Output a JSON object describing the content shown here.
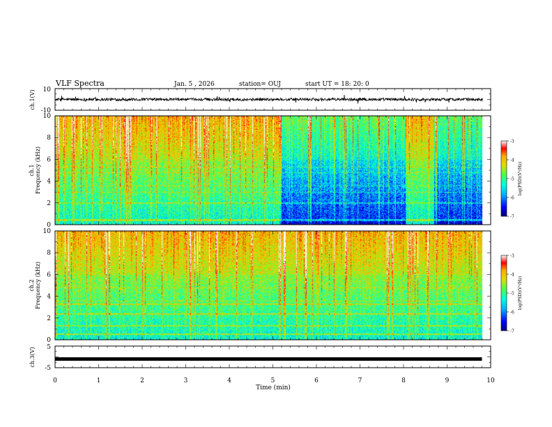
{
  "header": {
    "title": "VLF Spectra",
    "date": "Jan. 5 , 2026",
    "station": "station= OUJ",
    "start": "start UT =  18: 20: 0"
  },
  "chart_data": [
    {
      "type": "line",
      "id": "ch1-waveform",
      "ylabel": "ch.1(V)",
      "ylim": [
        -10,
        10
      ],
      "yticks": [
        "10",
        "-10"
      ],
      "xlim": [
        0,
        10
      ],
      "color": "#000000"
    },
    {
      "type": "heatmap",
      "id": "ch1-spectrogram",
      "ylabel": "ch.1\nFrequency (kHz)",
      "ylabel_line1": "ch.1",
      "ylabel_line2": "Frequency (kHz)",
      "ylim": [
        0,
        10
      ],
      "yticks": [
        "0",
        "2",
        "4",
        "6",
        "8",
        "10"
      ],
      "xlim": [
        0,
        10
      ],
      "data_end_min": 9.8,
      "low_activity_segments": [
        [
          5.15,
          8.05
        ],
        [
          8.7,
          9.8
        ]
      ],
      "colorbar": {
        "label": "log(PSD)(V²/Hz)",
        "range": [
          -7,
          -3
        ],
        "ticks": [
          "-3",
          "-4",
          "-5",
          "-6",
          "-7"
        ]
      }
    },
    {
      "type": "heatmap",
      "id": "ch2-spectrogram",
      "ylabel": "ch.2\nFrequency (kHz)",
      "ylabel_line1": "ch.2",
      "ylabel_line2": "Frequency (kHz)",
      "ylim": [
        0,
        10
      ],
      "yticks": [
        "0",
        "2",
        "4",
        "6",
        "8",
        "10"
      ],
      "xlim": [
        0,
        10
      ],
      "data_end_min": 9.8,
      "colorbar": {
        "label": "log(PSD)(V²/Hz)",
        "range": [
          -7,
          -3
        ],
        "ticks": [
          "-3",
          "-4",
          "-5",
          "-6",
          "-7"
        ]
      }
    },
    {
      "type": "line",
      "id": "ch3-waveform",
      "ylabel": "ch.3(V)",
      "ylim": [
        -5,
        5
      ],
      "yticks": [
        "5",
        "-5"
      ],
      "xlim": [
        0,
        10
      ],
      "constant_value": -1,
      "color": "#000000"
    }
  ],
  "xaxis": {
    "label": "Time (min)",
    "ticks": [
      "0",
      "1",
      "2",
      "3",
      "4",
      "5",
      "6",
      "7",
      "8",
      "9",
      "10"
    ],
    "range": [
      0,
      10
    ]
  },
  "colors": {
    "colormap": [
      "#00007a",
      "#0000ff",
      "#00aaff",
      "#00ffdd",
      "#4dff4d",
      "#dddd00",
      "#ffaa00",
      "#ff0000",
      "#ffffff"
    ]
  }
}
